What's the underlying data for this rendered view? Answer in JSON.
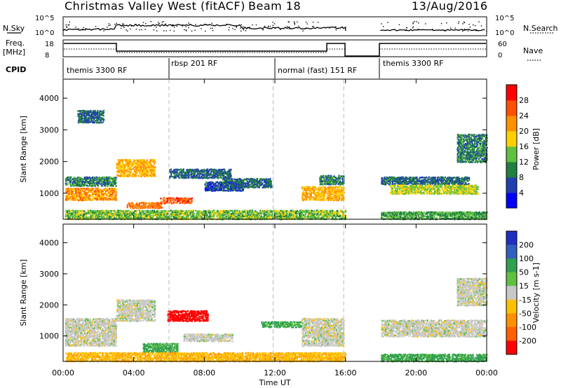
{
  "header": {
    "station": "Christmas Valley West (fitACF)",
    "beam": "Beam 18",
    "date": "13/Aug/2016"
  },
  "noise_panel": {
    "left_label": "N.Sky",
    "right_label": "N.Search",
    "left_ticks": [
      "10^5",
      "10^0"
    ],
    "right_ticks": [
      "10^5",
      "10^0"
    ]
  },
  "freq_panel": {
    "left_label_1": "Freq.",
    "left_label_2": "[MHz]",
    "right_label": "Nave",
    "left_ticks": [
      "18",
      "8"
    ],
    "right_ticks": [
      "60",
      "0"
    ]
  },
  "cpid": {
    "label": "CPID",
    "segments": [
      {
        "name": "themis 3300 RF",
        "start_hr": 0,
        "end_hr": 6
      },
      {
        "name": "rbsp 201 RF",
        "start_hr": 6,
        "end_hr": 12
      },
      {
        "name": "normal (fast) 151 RF",
        "start_hr": 12,
        "end_hr": 18
      },
      {
        "name": "themis 3300 RF",
        "start_hr": 18,
        "end_hr": 24
      }
    ]
  },
  "axes": {
    "xlabel": "Time UT",
    "x_ticks": [
      "00:00",
      "04:00",
      "08:00",
      "12:00",
      "16:00",
      "20:00",
      "00:00"
    ],
    "ylabel": "Slant Range [km]",
    "y_ticks": [
      "1000",
      "2000",
      "3000",
      "4000"
    ]
  },
  "power_colorbar": {
    "label": "Power [dB]",
    "ticks": [
      "4",
      "8",
      "12",
      "16",
      "20",
      "24",
      "28"
    ],
    "colors": [
      "#0000ff",
      "#2040b0",
      "#208040",
      "#60c040",
      "#ffd000",
      "#ff9000",
      "#ff5000",
      "#ff0000"
    ]
  },
  "velocity_colorbar": {
    "label": "Velocity [m s-1]",
    "ticks": [
      "200",
      "100",
      "50",
      "15",
      "-15",
      "-50",
      "-100",
      "-200"
    ],
    "colors": [
      "#2030c0",
      "#3060c0",
      "#30a050",
      "#60c040",
      "#c8c8c8",
      "#ffc000",
      "#ff9000",
      "#ff6000",
      "#ff0000"
    ]
  },
  "chart_data": [
    {
      "type": "heatmap",
      "name": "Power",
      "x_range_hr": [
        0,
        24
      ],
      "ylim": [
        180,
        4600
      ],
      "data_gaps_hr": [
        [
          16.0,
          18.0
        ]
      ],
      "dashed_lines_hr": [
        6,
        11.9,
        15.9
      ],
      "regions": [
        {
          "t": [
            0.1,
            3.0
          ],
          "r": [
            800,
            1200
          ],
          "value": 22
        },
        {
          "t": [
            0.1,
            3.0
          ],
          "r": [
            1250,
            1550
          ],
          "value": 10
        },
        {
          "t": [
            0.8,
            2.3
          ],
          "r": [
            3250,
            3650
          ],
          "value": 8
        },
        {
          "t": [
            3.0,
            5.2
          ],
          "r": [
            1550,
            2100
          ],
          "value": 20
        },
        {
          "t": [
            3.6,
            5.6
          ],
          "r": [
            550,
            750
          ],
          "value": 24
        },
        {
          "t": [
            5.5,
            7.3
          ],
          "r": [
            700,
            900
          ],
          "value": 26
        },
        {
          "t": [
            6.0,
            9.5
          ],
          "r": [
            1500,
            1800
          ],
          "value": 8
        },
        {
          "t": [
            8.0,
            10.2
          ],
          "r": [
            1100,
            1400
          ],
          "value": 6
        },
        {
          "t": [
            9.0,
            11.8
          ],
          "r": [
            1200,
            1500
          ],
          "value": 8
        },
        {
          "t": [
            13.5,
            15.9
          ],
          "r": [
            800,
            1250
          ],
          "value": 20
        },
        {
          "t": [
            14.5,
            15.9
          ],
          "r": [
            1300,
            1600
          ],
          "value": 10
        },
        {
          "t": [
            18.0,
            23.0
          ],
          "r": [
            1300,
            1550
          ],
          "value": 8
        },
        {
          "t": [
            18.5,
            23.5
          ],
          "r": [
            1000,
            1300
          ],
          "value": 16
        },
        {
          "t": [
            22.3,
            24.0
          ],
          "r": [
            2000,
            2900
          ],
          "value": 10
        },
        {
          "t": [
            0.1,
            16.0
          ],
          "r": [
            200,
            500
          ],
          "value": 14
        },
        {
          "t": [
            18.0,
            24.0
          ],
          "r": [
            200,
            450
          ],
          "value": 12
        }
      ]
    },
    {
      "type": "heatmap",
      "name": "Velocity",
      "x_range_hr": [
        0,
        24
      ],
      "ylim": [
        180,
        4600
      ],
      "data_gaps_hr": [
        [
          16.0,
          18.0
        ]
      ],
      "dashed_lines_hr": [
        6,
        11.9,
        15.9
      ],
      "regions": [
        {
          "t": [
            0.1,
            3.0
          ],
          "r": [
            700,
            1600
          ],
          "value": 0
        },
        {
          "t": [
            3.0,
            5.2
          ],
          "r": [
            1500,
            2200
          ],
          "value": 0
        },
        {
          "t": [
            5.9,
            8.2
          ],
          "r": [
            1500,
            1850
          ],
          "value": -220
        },
        {
          "t": [
            4.5,
            6.5
          ],
          "r": [
            500,
            800
          ],
          "value": 40
        },
        {
          "t": [
            6.8,
            9.6
          ],
          "r": [
            850,
            1100
          ],
          "value": 0
        },
        {
          "t": [
            11.2,
            13.5
          ],
          "r": [
            1300,
            1500
          ],
          "value": 40
        },
        {
          "t": [
            13.5,
            15.9
          ],
          "r": [
            700,
            1600
          ],
          "value": 0
        },
        {
          "t": [
            18.0,
            24.0
          ],
          "r": [
            1000,
            1550
          ],
          "value": 0
        },
        {
          "t": [
            22.3,
            24.0
          ],
          "r": [
            2000,
            2900
          ],
          "value": 0
        },
        {
          "t": [
            0.1,
            16.0
          ],
          "r": [
            200,
            500
          ],
          "value": -40
        },
        {
          "t": [
            18.0,
            24.0
          ],
          "r": [
            200,
            450
          ],
          "value": 40
        }
      ]
    }
  ]
}
